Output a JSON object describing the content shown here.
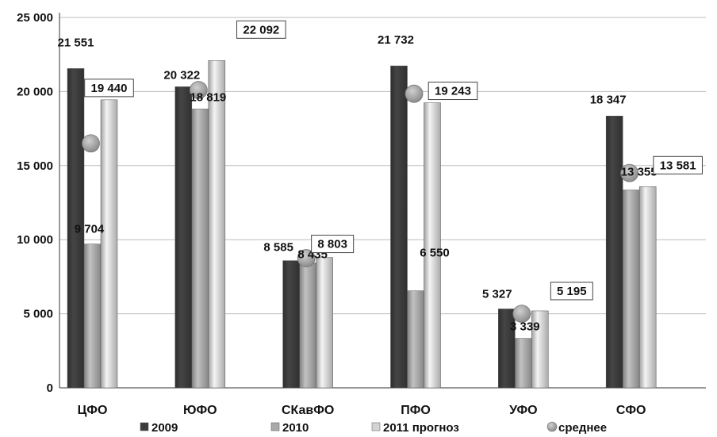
{
  "chart_data": {
    "type": "bar",
    "title": "",
    "xlabel": "",
    "ylabel": "",
    "ylim": [
      0,
      25000
    ],
    "yticks": [
      0,
      5000,
      10000,
      15000,
      20000,
      25000
    ],
    "ytick_labels": [
      "0",
      "5 000",
      "10 000",
      "15 000",
      "20 000",
      "25 000"
    ],
    "grid": true,
    "legend_position": "bottom",
    "categories": [
      "ЦФО",
      "ЮФО",
      "СКавФО",
      "ПФО",
      "УФО",
      "СФО"
    ],
    "series": [
      {
        "name": "2009",
        "color": "#3c3c3c",
        "values": [
          21551,
          20322,
          8585,
          21732,
          5327,
          18347
        ],
        "labels": [
          "21 551",
          "20 322",
          "8 585",
          "21 732",
          "5 327",
          "18 347"
        ]
      },
      {
        "name": "2010",
        "color": "#a9a9a9",
        "values": [
          9704,
          18819,
          8435,
          6550,
          3339,
          13355
        ],
        "labels": [
          "9 704",
          "18 819",
          "8 435",
          "6 550",
          "3 339",
          "13 355"
        ]
      },
      {
        "name": "2011 прогноз",
        "color": "#d4d4d4",
        "values": [
          19440,
          22092,
          8803,
          19243,
          5195,
          13581
        ],
        "labels": [
          "19 440",
          "22 092",
          "8 803",
          "19 243",
          "5 195",
          "13 581"
        ]
      }
    ],
    "average": {
      "name": "среднее",
      "color": "#8c8c8c",
      "values": [
        16500,
        20100,
        8750,
        19850,
        5000,
        14500
      ]
    }
  }
}
